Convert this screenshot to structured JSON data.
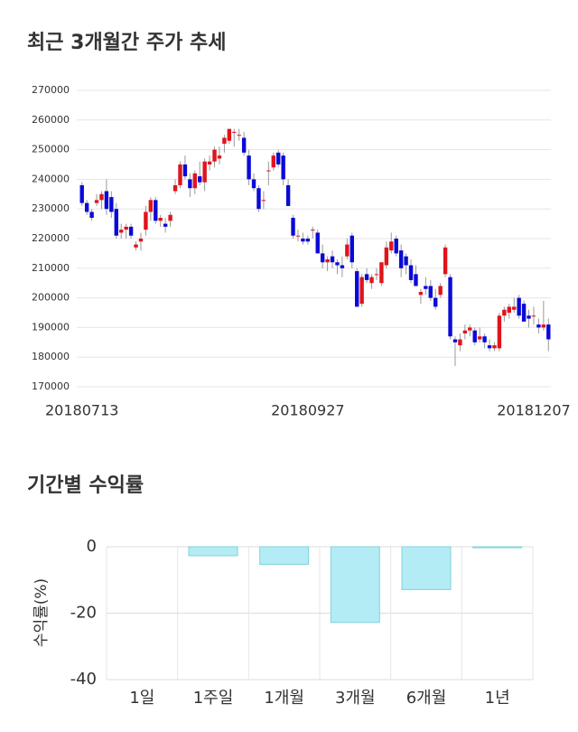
{
  "chart_data": [
    {
      "type": "candlestick",
      "title": "최근 3개월간 주가 추세",
      "categories": [
        "20180713",
        null,
        null,
        null,
        null,
        null,
        null,
        null,
        null,
        null,
        null,
        null,
        null,
        null,
        null,
        null,
        null,
        null,
        null,
        null,
        null,
        null,
        null,
        null,
        null,
        null,
        null,
        null,
        null,
        null,
        null,
        null,
        null,
        null,
        null,
        null,
        null,
        null,
        null,
        null,
        null,
        null,
        null,
        null,
        null,
        null,
        "20180927",
        null,
        null,
        null,
        null,
        null,
        null,
        null,
        null,
        null,
        null,
        null,
        null,
        null,
        null,
        null,
        null,
        null,
        null,
        null,
        null,
        null,
        null,
        null,
        null,
        null,
        null,
        null,
        null,
        null,
        null,
        null,
        null,
        null,
        null,
        null,
        null,
        null,
        null,
        null,
        null,
        null,
        null,
        null,
        null,
        null,
        "20181207",
        null,
        null,
        null
      ],
      "open": [
        238000,
        232000,
        229000,
        232000,
        233000,
        236000,
        234000,
        230000,
        222000,
        223000,
        224000,
        217000,
        219000,
        223000,
        229000,
        233000,
        226000,
        225000,
        226000,
        236000,
        238000,
        245000,
        240000,
        237000,
        241000,
        239000,
        245000,
        246000,
        247000,
        252000,
        253000,
        256000,
        255000,
        254000,
        248000,
        240000,
        237000,
        233000,
        243000,
        244000,
        249000,
        248000,
        238000,
        227000,
        221000,
        220000,
        220000,
        223000,
        222000,
        215000,
        212000,
        214000,
        212000,
        211000,
        214000,
        221000,
        209000,
        198000,
        208000,
        205000,
        208000,
        205000,
        211000,
        216000,
        220000,
        216000,
        214000,
        211000,
        208000,
        201000,
        204000,
        204000,
        200000,
        201000,
        208000,
        207000,
        186000,
        184000,
        188000,
        189000,
        189000,
        186000,
        187000,
        184000,
        183000,
        183000,
        194000,
        195000,
        196000,
        200000,
        198000,
        194000,
        194000,
        191000,
        190000,
        191000
      ],
      "high": [
        239000,
        233000,
        230000,
        235000,
        236000,
        240000,
        236000,
        232000,
        225000,
        225000,
        225000,
        219000,
        222000,
        231000,
        234000,
        234000,
        228000,
        227000,
        229000,
        240000,
        246000,
        248000,
        242000,
        243000,
        246000,
        247000,
        248000,
        251000,
        251000,
        255000,
        257000,
        257000,
        257000,
        256000,
        250000,
        242000,
        238000,
        236000,
        246000,
        249000,
        250000,
        249000,
        240000,
        228000,
        223000,
        222000,
        221000,
        224000,
        223000,
        218000,
        214000,
        216000,
        213000,
        214000,
        220000,
        222000,
        210000,
        208000,
        210000,
        208000,
        210000,
        212000,
        219000,
        222000,
        221000,
        218000,
        215000,
        213000,
        211000,
        203000,
        207000,
        206000,
        203000,
        205000,
        218000,
        208000,
        187000,
        188000,
        191000,
        191000,
        190000,
        190000,
        188000,
        186000,
        185000,
        195000,
        197000,
        198000,
        200000,
        201000,
        199000,
        196000,
        197000,
        193000,
        199000,
        193000
      ],
      "low": [
        231000,
        228000,
        226000,
        231000,
        230000,
        228000,
        227000,
        220000,
        220000,
        220000,
        220000,
        216000,
        216000,
        221000,
        226000,
        225000,
        224000,
        222000,
        224000,
        235000,
        237000,
        240000,
        234000,
        235000,
        238000,
        236000,
        243000,
        244000,
        245000,
        249000,
        252000,
        251000,
        253000,
        248000,
        238000,
        236000,
        229000,
        230000,
        238000,
        243000,
        244000,
        238000,
        231000,
        220000,
        219000,
        218000,
        218000,
        220000,
        215000,
        210000,
        209000,
        210000,
        208000,
        207000,
        213000,
        210000,
        197000,
        197000,
        205000,
        203000,
        206000,
        204000,
        210000,
        215000,
        214000,
        207000,
        208000,
        205000,
        204000,
        198000,
        201000,
        199000,
        196000,
        200000,
        207000,
        186000,
        177000,
        182000,
        186000,
        187000,
        184000,
        185000,
        183000,
        182000,
        182000,
        182000,
        192000,
        193000,
        195000,
        193000,
        192000,
        190000,
        191000,
        188000,
        189000,
        182000
      ],
      "close": [
        232000,
        229000,
        227000,
        233000,
        235000,
        230000,
        229000,
        221000,
        223000,
        224000,
        221000,
        218000,
        220000,
        229000,
        233000,
        226000,
        227000,
        224000,
        228000,
        238000,
        245000,
        241000,
        237000,
        242000,
        239000,
        246000,
        246000,
        250000,
        248000,
        254000,
        257000,
        256000,
        255000,
        249000,
        240000,
        237000,
        230000,
        233000,
        243000,
        248000,
        245000,
        240000,
        231000,
        221000,
        221000,
        219000,
        219000,
        223000,
        215000,
        212000,
        213000,
        212000,
        211000,
        210000,
        218000,
        212000,
        197000,
        207000,
        206000,
        207000,
        208000,
        212000,
        217000,
        219000,
        215000,
        210000,
        211000,
        206000,
        204000,
        202000,
        203000,
        200000,
        197000,
        204000,
        217000,
        187000,
        185000,
        186000,
        189000,
        190000,
        185000,
        187000,
        185000,
        183000,
        184000,
        194000,
        196000,
        197000,
        197000,
        194000,
        192000,
        193000,
        194000,
        190000,
        191000,
        186000
      ],
      "up_color": "#e0141b",
      "down_color": "#0a0ad6",
      "ylim": [
        170000,
        270000
      ],
      "yticks": [
        170000,
        180000,
        190000,
        200000,
        210000,
        220000,
        230000,
        240000,
        250000,
        260000,
        270000
      ],
      "grid": true
    },
    {
      "type": "bar",
      "title": "기간별 수익률",
      "y_label": "수익률(%)",
      "categories": [
        "1일",
        "1주일",
        "1개월",
        "3개월",
        "6개월",
        "1년"
      ],
      "values": [
        0,
        -2.7,
        -5.3,
        -22.8,
        -12.9,
        -0.3
      ],
      "color": "#b3ecf4",
      "border_color": "#82d2de",
      "ylim": [
        -40,
        0
      ],
      "yticks": [
        -40,
        -20,
        0
      ],
      "grid": true
    }
  ]
}
